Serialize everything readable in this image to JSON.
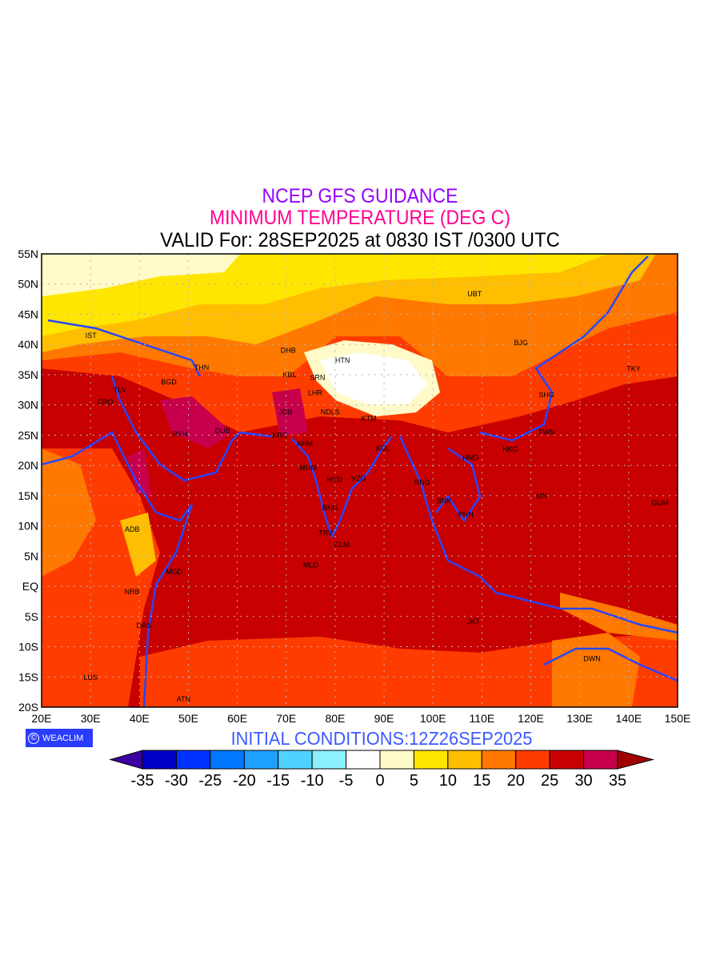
{
  "title": {
    "line1": "NCEP GFS GUIDANCE",
    "line2": "MINIMUM TEMPERATURE (DEG C)",
    "line3": "VALID For: 28SEP2025 at 0830 IST /0300 UTC"
  },
  "colors": {
    "title1": "#9600ff",
    "title2": "#ff0090",
    "coast": "#2846ff",
    "grid": "#b4b4b4"
  },
  "map": {
    "lon_range": [
      20,
      150
    ],
    "lat_range": [
      -20,
      55
    ],
    "lon_ticks": [
      "20E",
      "30E",
      "40E",
      "50E",
      "60E",
      "70E",
      "80E",
      "90E",
      "100E",
      "110E",
      "120E",
      "130E",
      "140E",
      "150E"
    ],
    "lat_ticks": [
      "55N",
      "50N",
      "45N",
      "40N",
      "35N",
      "30N",
      "25N",
      "20N",
      "15N",
      "10N",
      "5N",
      "EQ",
      "5S",
      "10S",
      "15S",
      "20S"
    ],
    "cities": [
      {
        "name": "UBT",
        "lon": 108.5,
        "lat": 48.4
      },
      {
        "name": "BJG",
        "lon": 118,
        "lat": 40.3
      },
      {
        "name": "TKY",
        "lon": 141,
        "lat": 36
      },
      {
        "name": "IST",
        "lon": 30.1,
        "lat": 41.5
      },
      {
        "name": "DHB",
        "lon": 70.4,
        "lat": 39
      },
      {
        "name": "HTN",
        "lon": 81.5,
        "lat": 37.4
      },
      {
        "name": "THN",
        "lon": 52.7,
        "lat": 36.2
      },
      {
        "name": "KBL",
        "lon": 70.7,
        "lat": 35
      },
      {
        "name": "SRN",
        "lon": 76.4,
        "lat": 34.5
      },
      {
        "name": "LHR",
        "lon": 75.9,
        "lat": 32
      },
      {
        "name": "BGD",
        "lon": 46,
        "lat": 33.8
      },
      {
        "name": "TLV",
        "lon": 36,
        "lat": 32.5
      },
      {
        "name": "CRO",
        "lon": 33,
        "lat": 30.5
      },
      {
        "name": "NDLS",
        "lon": 79,
        "lat": 28.8
      },
      {
        "name": "SHG",
        "lon": 123.2,
        "lat": 31.7
      },
      {
        "name": "JCB",
        "lon": 69.9,
        "lat": 28.8
      },
      {
        "name": "KTM",
        "lon": 86.9,
        "lat": 27.8
      },
      {
        "name": "RYH",
        "lon": 48.3,
        "lat": 25.2
      },
      {
        "name": "DUB",
        "lon": 57,
        "lat": 25.7
      },
      {
        "name": "KRC",
        "lon": 68.7,
        "lat": 25
      },
      {
        "name": "TWN",
        "lon": 123.2,
        "lat": 25.5
      },
      {
        "name": "AHM",
        "lon": 73.8,
        "lat": 23.6
      },
      {
        "name": "KOL",
        "lon": 89.8,
        "lat": 22.8
      },
      {
        "name": "HKG",
        "lon": 115.8,
        "lat": 22.7
      },
      {
        "name": "HNO",
        "lon": 107.7,
        "lat": 21.3
      },
      {
        "name": "MUM",
        "lon": 74.5,
        "lat": 19.6
      },
      {
        "name": "HYD",
        "lon": 79.9,
        "lat": 17.6
      },
      {
        "name": "VZG",
        "lon": 84.8,
        "lat": 17.8
      },
      {
        "name": "RNG",
        "lon": 97.8,
        "lat": 17.2
      },
      {
        "name": "MN",
        "lon": 122.2,
        "lat": 14.9
      },
      {
        "name": "GUM",
        "lon": 146.4,
        "lat": 13.8
      },
      {
        "name": "BNK",
        "lon": 102.3,
        "lat": 14.1
      },
      {
        "name": "BNG",
        "lon": 79,
        "lat": 13
      },
      {
        "name": "PHN",
        "lon": 106.7,
        "lat": 11.9
      },
      {
        "name": "ADB",
        "lon": 38.5,
        "lat": 9.4
      },
      {
        "name": "TRV",
        "lon": 78.1,
        "lat": 8.8
      },
      {
        "name": "CLM",
        "lon": 81.3,
        "lat": 6.9
      },
      {
        "name": "MLD",
        "lon": 75,
        "lat": 3.5
      },
      {
        "name": "MGD",
        "lon": 47.1,
        "lat": 2.4
      },
      {
        "name": "NRB",
        "lon": 38.5,
        "lat": -0.9
      },
      {
        "name": "DAS",
        "lon": 40.9,
        "lat": -6.5
      },
      {
        "name": "JKT",
        "lon": 108.3,
        "lat": -5.8
      },
      {
        "name": "DWN",
        "lon": 132.5,
        "lat": -12
      },
      {
        "name": "LUS",
        "lon": 30,
        "lat": -15.1
      },
      {
        "name": "ATN",
        "lon": 49,
        "lat": -18.7
      }
    ]
  },
  "logo": {
    "symbol": "©",
    "text": "WEACLIM"
  },
  "initial_conditions": "INITIAL  CONDITIONS:12Z26SEP2025",
  "colorbar": {
    "labels": [
      "-35",
      "-30",
      "-25",
      "-20",
      "-15",
      "-10",
      "-5",
      "0",
      "5",
      "10",
      "15",
      "20",
      "25",
      "30",
      "35"
    ],
    "under_color": "#3c00a0",
    "over_color": "#a00000",
    "colors": [
      "#0000c8",
      "#0032ff",
      "#0078ff",
      "#1ea0ff",
      "#50d2ff",
      "#8cf0ff",
      "#ffffff",
      "#fffac8",
      "#ffe600",
      "#ffbe00",
      "#ff7800",
      "#ff3c00",
      "#c80000",
      "#c8004b"
    ]
  }
}
